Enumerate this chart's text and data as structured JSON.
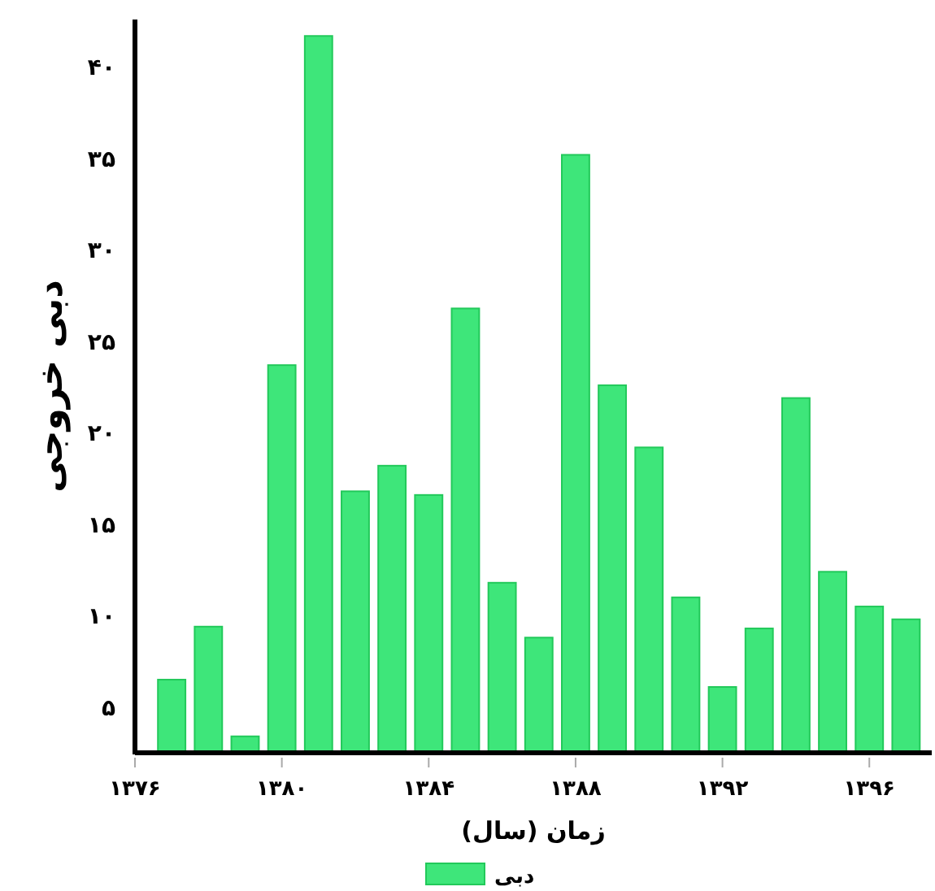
{
  "chart_data": {
    "type": "bar",
    "xlabel": "زمان (سال)",
    "ylabel": "دبی خروجی",
    "x": [
      1377,
      1378,
      1379,
      1380,
      1381,
      1382,
      1383,
      1384,
      1385,
      1386,
      1387,
      1388,
      1389,
      1390,
      1391,
      1392,
      1393,
      1394,
      1395,
      1396,
      1397
    ],
    "series": [
      {
        "name": "دبی",
        "color": "#3ee67a",
        "values": [
          6.5,
          9.4,
          3.4,
          23.7,
          41.7,
          16.8,
          18.2,
          16.6,
          26.8,
          11.8,
          8.8,
          35.2,
          22.6,
          19.2,
          11.0,
          6.1,
          9.3,
          21.9,
          12.4,
          10.5,
          9.8
        ]
      }
    ],
    "xlim": [
      1376,
      1397.7
    ],
    "xticks": [
      {
        "value": 1376,
        "label": "۱۳۷۶"
      },
      {
        "value": 1380,
        "label": "۱۳۸۰"
      },
      {
        "value": 1384,
        "label": "۱۳۸۴"
      },
      {
        "value": 1388,
        "label": "۱۳۸۸"
      },
      {
        "value": 1392,
        "label": "۱۳۹۲"
      },
      {
        "value": 1396,
        "label": "۱۳۹۶"
      }
    ],
    "ylim": [
      2.5,
      42.6
    ],
    "yticks": [
      {
        "value": 5,
        "label": "۵"
      },
      {
        "value": 10,
        "label": "۱۰"
      },
      {
        "value": 15,
        "label": "۱۵"
      },
      {
        "value": 20,
        "label": "۲۰"
      },
      {
        "value": 25,
        "label": "۲۵"
      },
      {
        "value": 30,
        "label": "۳۰"
      },
      {
        "value": 35,
        "label": "۳۵"
      },
      {
        "value": 40,
        "label": "۴۰"
      }
    ],
    "grid": false,
    "legend": "bottom"
  }
}
